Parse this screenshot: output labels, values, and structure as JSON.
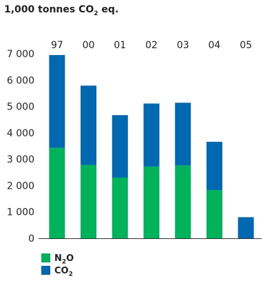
{
  "chart_data": {
    "type": "bar",
    "stacked": true,
    "title_parts": [
      "1,000 tonnes CO",
      "2",
      " eq."
    ],
    "categories": [
      "97",
      "00",
      "01",
      "02",
      "03",
      "04",
      "05"
    ],
    "series": [
      {
        "name_parts": [
          "N",
          "2",
          "O"
        ],
        "color": "#00b259",
        "values": [
          3430,
          2780,
          2300,
          2720,
          2760,
          1830,
          0
        ]
      },
      {
        "name_parts": [
          "CO",
          "2",
          ""
        ],
        "color": "#0067b1",
        "values": [
          3520,
          3010,
          2370,
          2390,
          2380,
          1830,
          800
        ]
      }
    ],
    "y_ticks": [
      "0",
      "1 000",
      "2 000",
      "3 000",
      "4 000",
      "5 000",
      "6 000",
      "7 000"
    ],
    "ylim": [
      0,
      7000
    ],
    "grid": false,
    "category_labels_position": "top",
    "legend_position": "bottom-left"
  }
}
